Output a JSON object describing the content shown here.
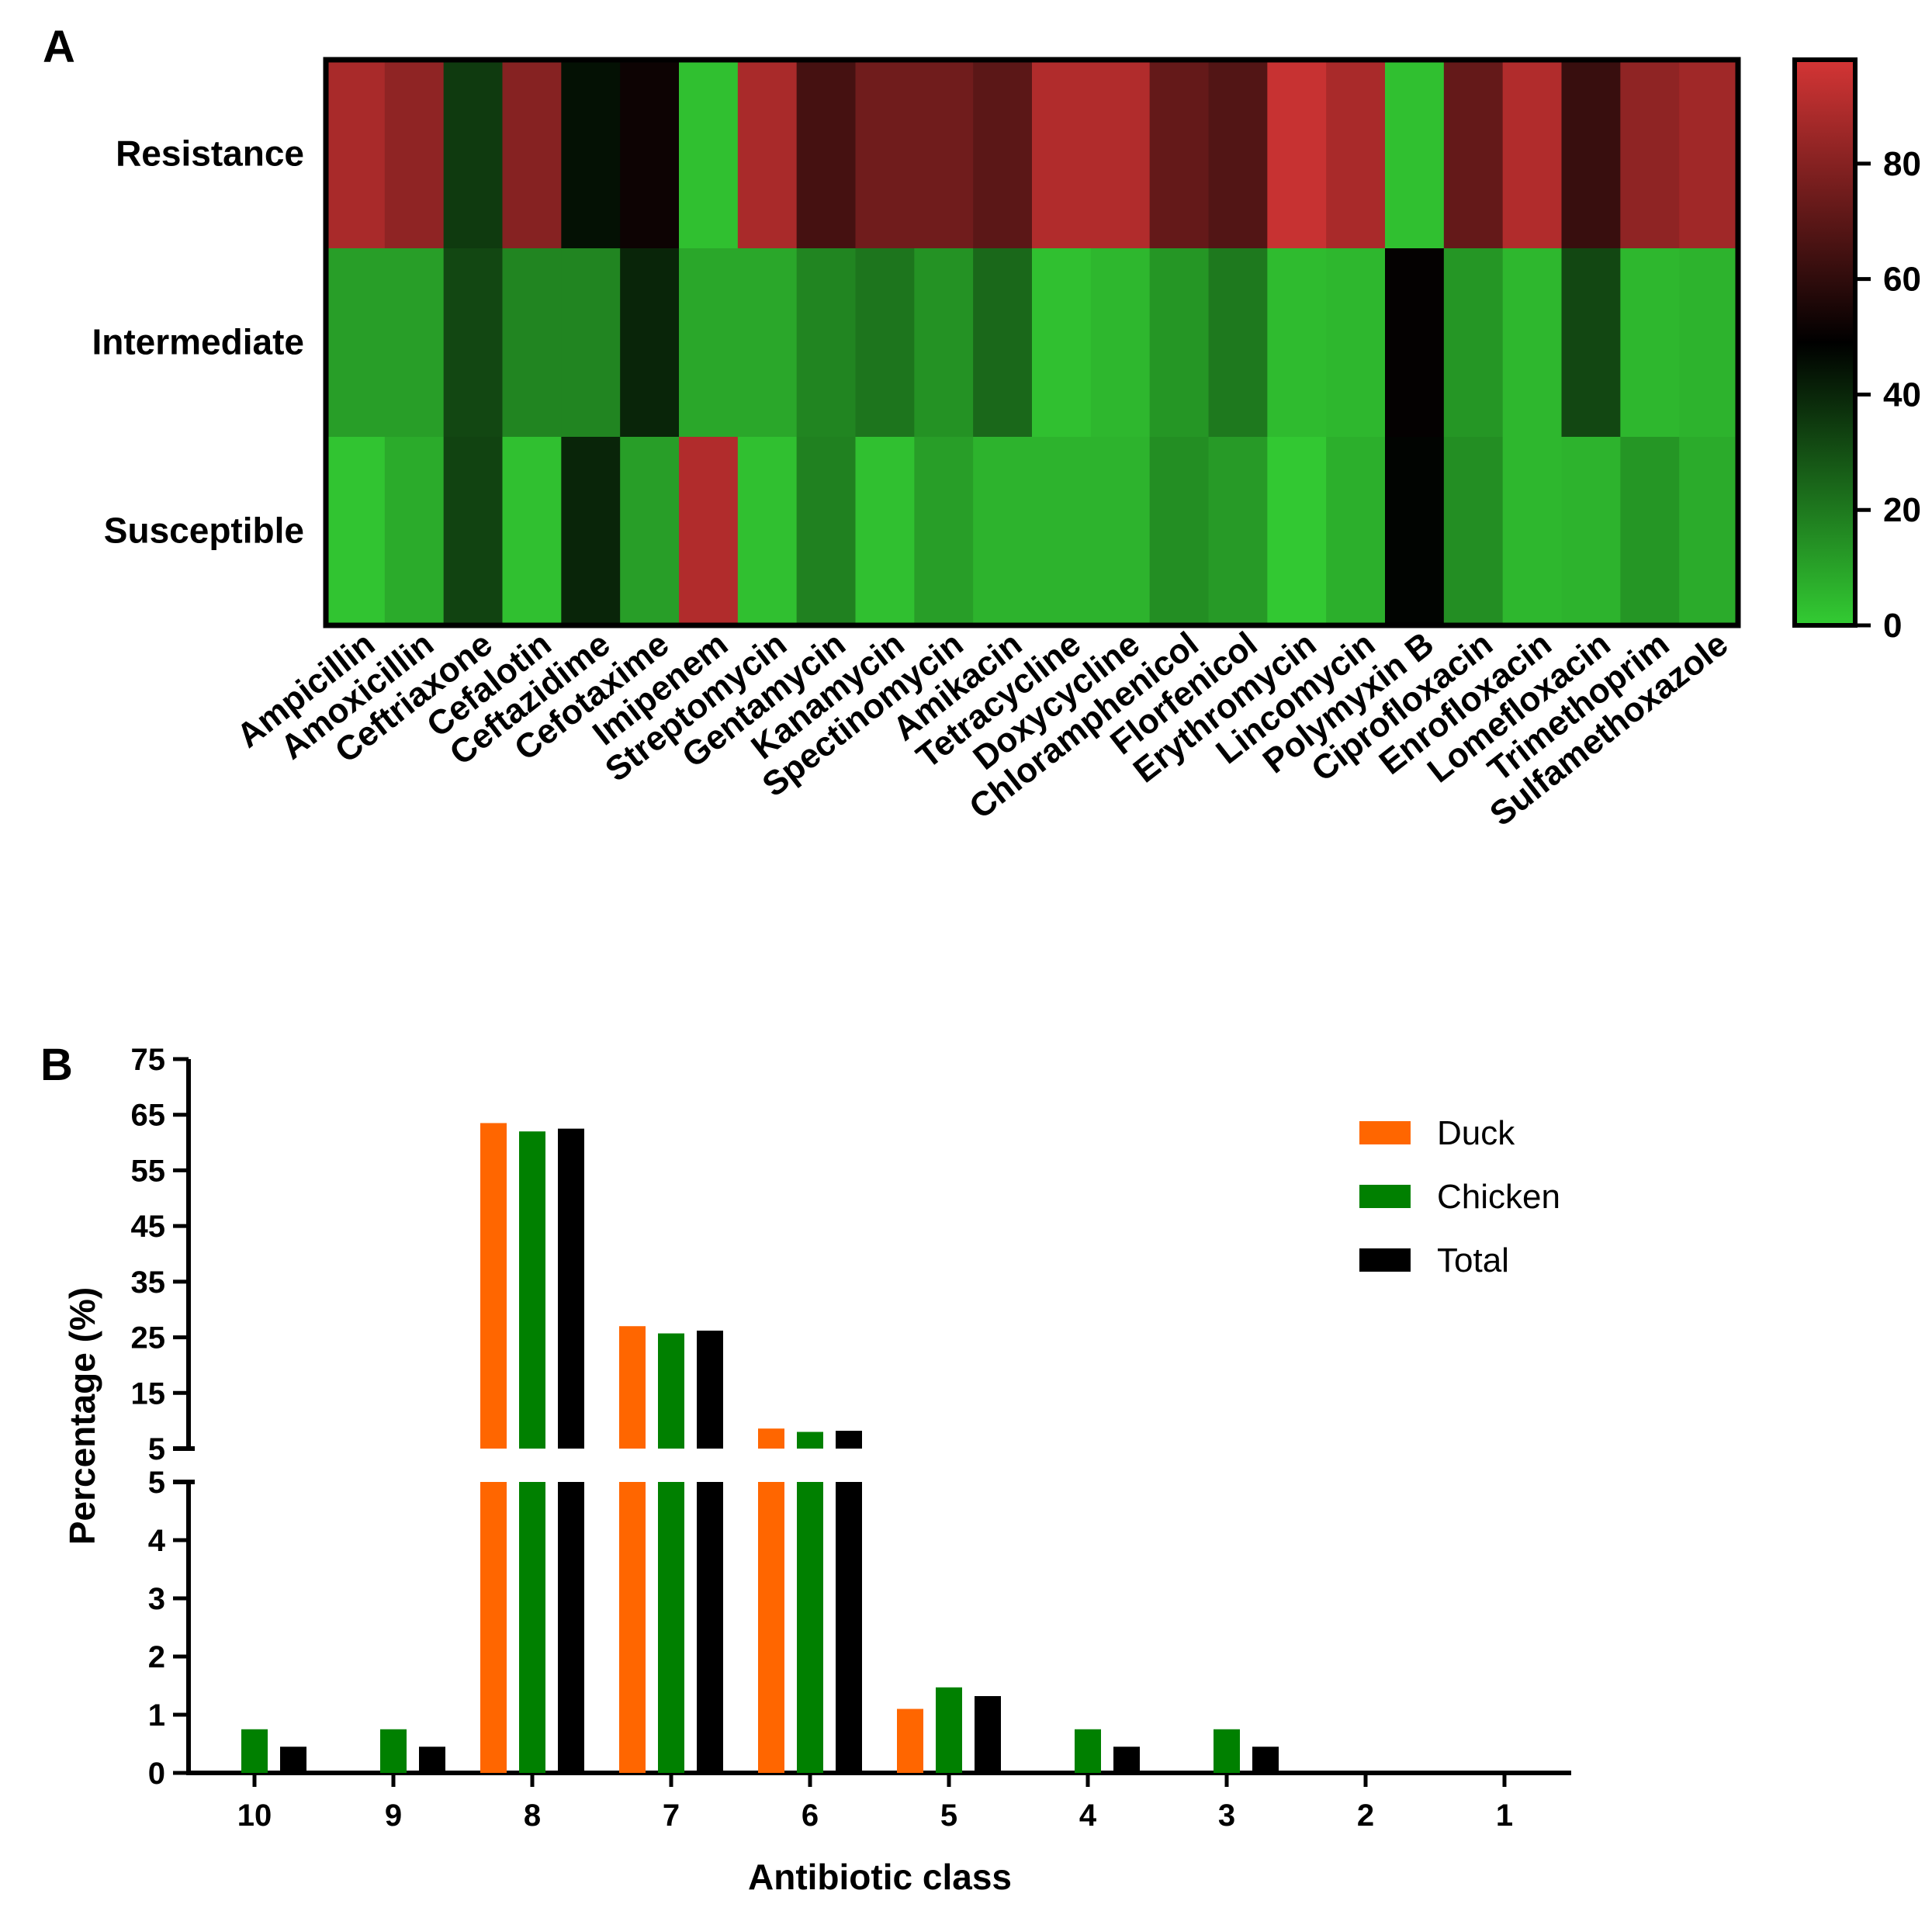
{
  "chart_data": [
    {
      "panel": "A",
      "type": "heatmap",
      "rows": [
        "Resistance",
        "Intermediate",
        "Susceptible"
      ],
      "columns": [
        "Ampicillin",
        "Amoxicillin",
        "Ceftriaxone",
        "Cefalotin",
        "Ceftazidime",
        "Cefotaxime",
        "Imipenem",
        "Streptomycin",
        "Gentamycin",
        "Kanamycin",
        "Spectinomycin",
        "Amikacin",
        "Tetracycline",
        "Doxycycline",
        "Chloramphenicol",
        "Florfenicol",
        "Erythromycin",
        "Lincomycin",
        "Polymyxin B",
        "Ciprofloxacin",
        "Enrofloxacin",
        "Lomefloxacin",
        "Trimethoprim",
        "Sulfamethoxazole"
      ],
      "values": [
        [
          88,
          82,
          35,
          80,
          45,
          52,
          3,
          88,
          65,
          75,
          75,
          70,
          90,
          90,
          72,
          68,
          95,
          88,
          3,
          72,
          90,
          62,
          82,
          86
        ],
        [
          11,
          11,
          32,
          17,
          17,
          40,
          9,
          9,
          17,
          21,
          14,
          24,
          3,
          5,
          13,
          20,
          4,
          5,
          50,
          13,
          5,
          32,
          5,
          6
        ],
        [
          2,
          8,
          33,
          3,
          40,
          11,
          90,
          3,
          18,
          3,
          11,
          6,
          6,
          6,
          15,
          12,
          1,
          7,
          48,
          15,
          5,
          6,
          13,
          8
        ]
      ],
      "colorbar": {
        "min": 0,
        "max": 98,
        "ticks": [
          0,
          20,
          40,
          60,
          80
        ],
        "colors": {
          "low": "#33cc33",
          "mid": "#000000",
          "high": "#d43535"
        }
      }
    },
    {
      "panel": "B",
      "type": "bar",
      "categories": [
        "10",
        "9",
        "8",
        "7",
        "6",
        "5",
        "4",
        "3",
        "2",
        "1"
      ],
      "series": [
        {
          "name": "Duck",
          "color": "#ff6600",
          "values": [
            0,
            0,
            63.5,
            27,
            8.6,
            1.1,
            0,
            0,
            0,
            0
          ]
        },
        {
          "name": "Chicken",
          "color": "#008000",
          "values": [
            0.75,
            0.75,
            62,
            25.7,
            8,
            1.47,
            0.75,
            0.75,
            0,
            0
          ]
        },
        {
          "name": "Total",
          "color": "#000000",
          "values": [
            0.45,
            0.45,
            62.5,
            26.2,
            8.2,
            1.32,
            0.45,
            0.45,
            0,
            0
          ]
        }
      ],
      "xlabel": "Antibiotic class",
      "ylabel": "Percentage (%)",
      "y_axis_break": {
        "lower": {
          "ylim": [
            0,
            5
          ],
          "ticks": [
            "0",
            "1",
            "2",
            "3",
            "4",
            "5"
          ]
        },
        "upper": {
          "ylim": [
            5,
            75
          ],
          "ticks": [
            "5",
            "15",
            "25",
            "35",
            "45",
            "55",
            "65",
            "75"
          ]
        }
      },
      "legend": "top-right"
    }
  ]
}
